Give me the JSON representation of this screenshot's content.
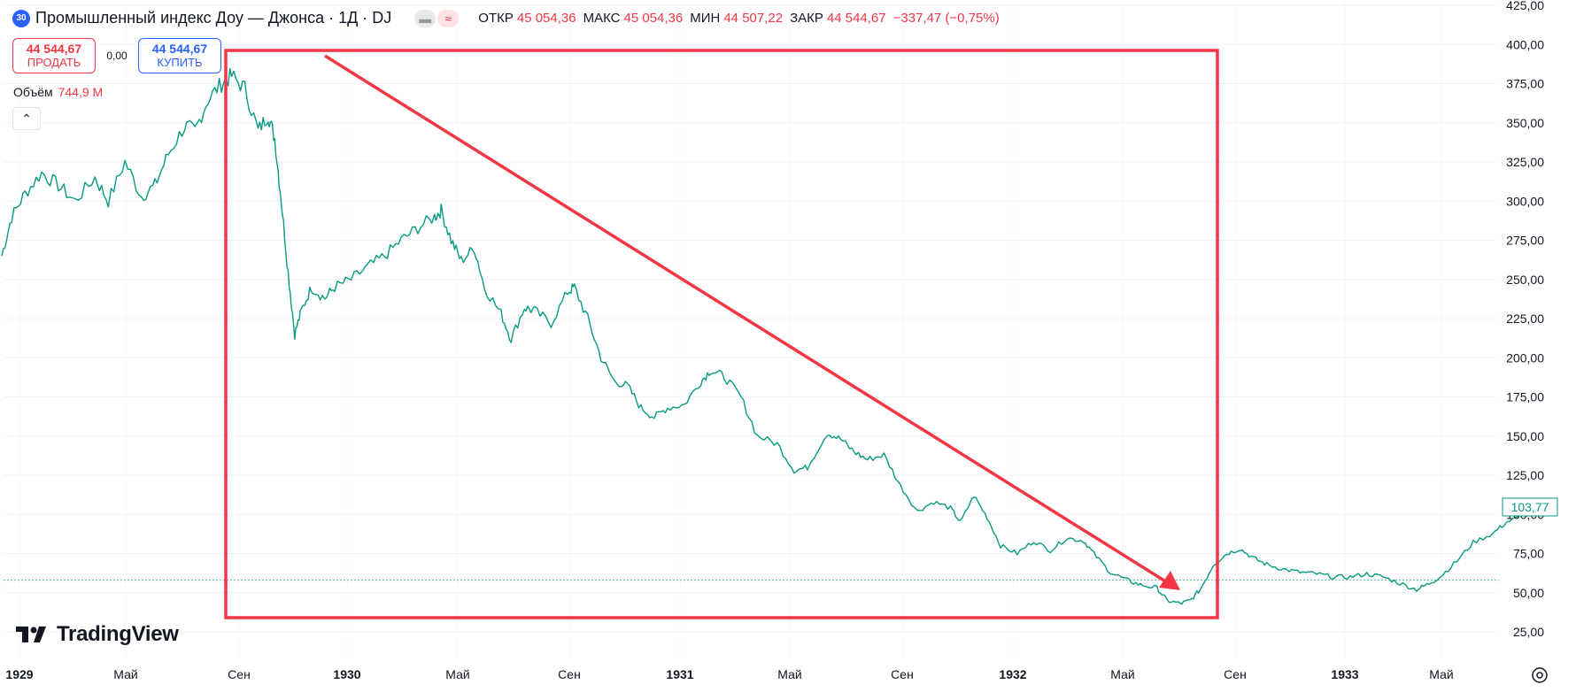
{
  "header": {
    "symbol_badge": "30",
    "title": "Промышленный индекс Доу — Джонса · 1Д · DJ",
    "ohlc": [
      {
        "label": "ОТКР",
        "value": "45 054,36"
      },
      {
        "label": "МАКС",
        "value": "45 054,36"
      },
      {
        "label": "МИН",
        "value": "44 507,22"
      },
      {
        "label": "ЗАКР",
        "value": "44 544,67"
      }
    ],
    "change": "−337,47 (−0,75%)"
  },
  "trade": {
    "sell_price": "44 544,67",
    "sell_label": "ПРОДАТЬ",
    "spread": "0,00",
    "buy_price": "44 544,67",
    "buy_label": "КУПИТЬ"
  },
  "volume": {
    "label": "Объём",
    "value": "744,9 M"
  },
  "logo_text": "TradingView",
  "last_price_label": "103,77",
  "colors": {
    "series": "#089981",
    "annotation": "#f23645",
    "accent": "#2962ff"
  },
  "chart_data": {
    "type": "line",
    "title": "",
    "y_ticks": [
      "425,00",
      "400,00",
      "375,00",
      "350,00",
      "325,00",
      "300,00",
      "275,00",
      "250,00",
      "225,00",
      "200,00",
      "175,00",
      "150,00",
      "125,00",
      "100,00",
      "75,00",
      "50,00",
      "25,00"
    ],
    "x_ticks": [
      "1929",
      "Май",
      "Сен",
      "1930",
      "Май",
      "Сен",
      "1931",
      "Май",
      "Сен",
      "1932",
      "Май",
      "Сен",
      "1933",
      "Май"
    ],
    "ylim": [
      25,
      425
    ],
    "series": [
      {
        "values": [
          [
            1929.0,
            265
          ],
          [
            1929.03,
            290
          ],
          [
            1929.07,
            305
          ],
          [
            1929.12,
            318
          ],
          [
            1929.17,
            310
          ],
          [
            1929.22,
            300
          ],
          [
            1929.28,
            315
          ],
          [
            1929.32,
            300
          ],
          [
            1929.37,
            325
          ],
          [
            1929.42,
            303
          ],
          [
            1929.46,
            310
          ],
          [
            1929.5,
            330
          ],
          [
            1929.55,
            348
          ],
          [
            1929.58,
            345
          ],
          [
            1929.62,
            365
          ],
          [
            1929.66,
            375
          ],
          [
            1929.69,
            380
          ],
          [
            1929.73,
            372
          ],
          [
            1929.77,
            345
          ],
          [
            1929.8,
            355
          ],
          [
            1929.82,
            340
          ],
          [
            1929.84,
            300
          ],
          [
            1929.86,
            255
          ],
          [
            1929.88,
            215
          ],
          [
            1929.9,
            230
          ],
          [
            1929.93,
            245
          ],
          [
            1929.97,
            238
          ],
          [
            1930.0,
            245
          ],
          [
            1930.05,
            250
          ],
          [
            1930.1,
            258
          ],
          [
            1930.15,
            265
          ],
          [
            1930.2,
            275
          ],
          [
            1930.25,
            283
          ],
          [
            1930.3,
            290
          ],
          [
            1930.32,
            294
          ],
          [
            1930.35,
            275
          ],
          [
            1930.38,
            262
          ],
          [
            1930.42,
            270
          ],
          [
            1930.45,
            245
          ],
          [
            1930.5,
            228
          ],
          [
            1930.53,
            212
          ],
          [
            1930.57,
            232
          ],
          [
            1930.6,
            230
          ],
          [
            1930.65,
            222
          ],
          [
            1930.7,
            242
          ],
          [
            1930.72,
            245
          ],
          [
            1930.76,
            225
          ],
          [
            1930.8,
            200
          ],
          [
            1930.84,
            185
          ],
          [
            1930.88,
            182
          ],
          [
            1930.92,
            168
          ],
          [
            1930.96,
            162
          ],
          [
            1931.0,
            168
          ],
          [
            1931.05,
            170
          ],
          [
            1931.1,
            185
          ],
          [
            1931.13,
            192
          ],
          [
            1931.17,
            188
          ],
          [
            1931.22,
            175
          ],
          [
            1931.27,
            150
          ],
          [
            1931.33,
            145
          ],
          [
            1931.38,
            128
          ],
          [
            1931.42,
            130
          ],
          [
            1931.48,
            152
          ],
          [
            1931.52,
            148
          ],
          [
            1931.56,
            140
          ],
          [
            1931.6,
            135
          ],
          [
            1931.65,
            138
          ],
          [
            1931.7,
            118
          ],
          [
            1931.75,
            102
          ],
          [
            1931.8,
            108
          ],
          [
            1931.85,
            104
          ],
          [
            1931.88,
            95
          ],
          [
            1931.92,
            112
          ],
          [
            1931.96,
            98
          ],
          [
            1932.0,
            80
          ],
          [
            1932.05,
            75
          ],
          [
            1932.1,
            83
          ],
          [
            1932.15,
            77
          ],
          [
            1932.2,
            85
          ],
          [
            1932.25,
            83
          ],
          [
            1932.28,
            75
          ],
          [
            1932.33,
            63
          ],
          [
            1932.38,
            58
          ],
          [
            1932.42,
            55
          ],
          [
            1932.47,
            53
          ],
          [
            1932.5,
            45
          ],
          [
            1932.54,
            43
          ],
          [
            1932.57,
            45
          ],
          [
            1932.6,
            52
          ],
          [
            1932.64,
            68
          ],
          [
            1932.68,
            75
          ],
          [
            1932.72,
            78
          ],
          [
            1932.76,
            72
          ],
          [
            1932.8,
            68
          ],
          [
            1932.85,
            65
          ],
          [
            1932.9,
            63
          ],
          [
            1932.95,
            62
          ],
          [
            1933.0,
            60
          ],
          [
            1933.05,
            60
          ],
          [
            1933.1,
            62
          ],
          [
            1933.15,
            60
          ],
          [
            1933.2,
            56
          ],
          [
            1933.25,
            52
          ],
          [
            1933.28,
            55
          ],
          [
            1933.32,
            60
          ],
          [
            1933.37,
            70
          ],
          [
            1933.42,
            82
          ],
          [
            1933.48,
            88
          ],
          [
            1933.52,
            95
          ],
          [
            1933.58,
            100
          ],
          [
            1933.62,
            103
          ]
        ]
      }
    ],
    "reference_level": 58
  }
}
